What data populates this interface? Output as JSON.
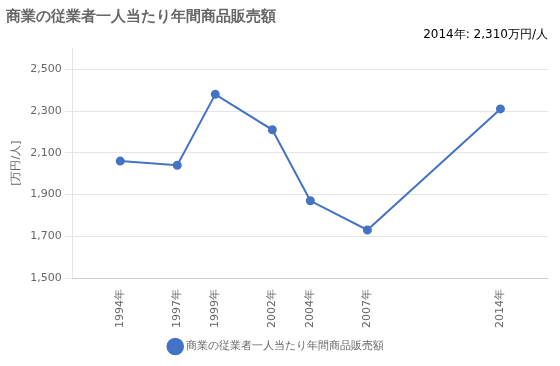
{
  "chart_data": {
    "type": "line",
    "title": "商業の従業者一人当たり年間商品販売額",
    "annotation": "2014年: 2,310万円/人",
    "y_label": "[万円/人]",
    "x": [
      1994,
      1997,
      1999,
      2002,
      2004,
      2007,
      2014
    ],
    "series": [
      {
        "name": "商業の従業者一人当たり年間商品販売額",
        "color": "#4472C4",
        "marker": "circle",
        "line_style": "solid",
        "values": [
          2060,
          2040,
          2380,
          2210,
          1870,
          1730,
          2310
        ]
      }
    ],
    "xlim": [
      1991.5,
      2016.5
    ],
    "xticks": [
      {
        "value": 1994,
        "label": "1994年"
      },
      {
        "value": 1997,
        "label": "1997年"
      },
      {
        "value": 1999,
        "label": "1999年"
      },
      {
        "value": 2002,
        "label": "2002年"
      },
      {
        "value": 2004,
        "label": "2004年"
      },
      {
        "value": 2007,
        "label": "2007年"
      },
      {
        "value": 2014,
        "label": "2014年"
      }
    ],
    "ylim": [
      1500,
      2600
    ],
    "yticks": [
      {
        "value": 1500,
        "label": "1,500"
      },
      {
        "value": 1700,
        "label": "1,700"
      },
      {
        "value": 1900,
        "label": "1,900"
      },
      {
        "value": 2100,
        "label": "2,100"
      },
      {
        "value": 2300,
        "label": "2,300"
      },
      {
        "value": 2500,
        "label": "2,500"
      }
    ],
    "grid": "y",
    "legend": "bottom"
  }
}
